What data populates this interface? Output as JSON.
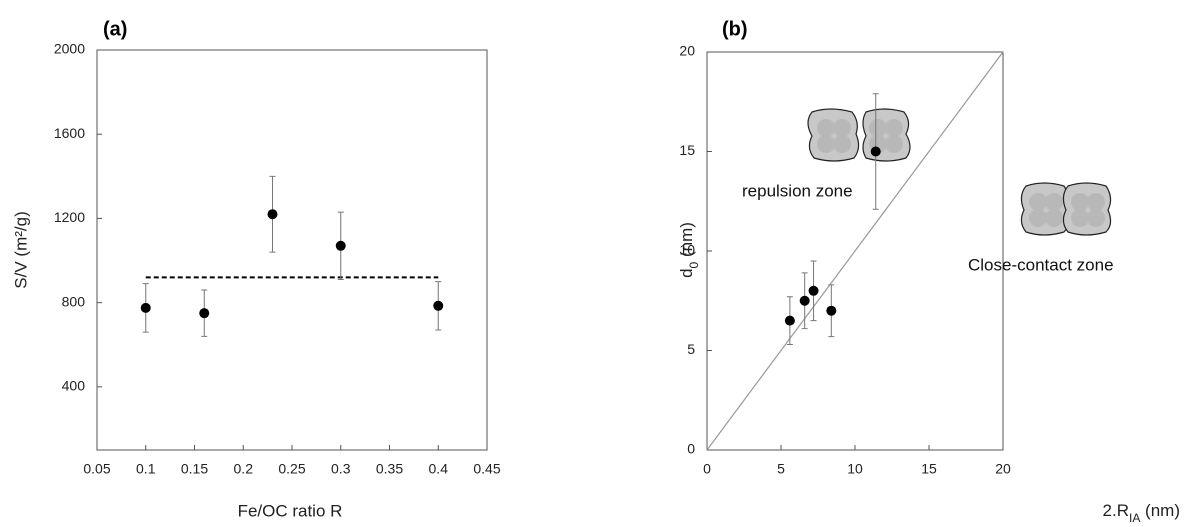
{
  "chart_data": [
    {
      "type": "scatter",
      "panel_label": "(a)",
      "x_label": "Fe/OC ratio R",
      "y_label": "S/V (m²/g)",
      "x": [
        0.1,
        0.16,
        0.23,
        0.3,
        0.4
      ],
      "values": [
        775,
        750,
        1220,
        1070,
        785
      ],
      "errors": [
        115,
        110,
        180,
        160,
        115
      ],
      "color": "#000000",
      "xlim": [
        0.05,
        0.45
      ],
      "xticks": [
        0.05,
        0.1,
        0.15,
        0.2,
        0.25,
        0.3,
        0.35,
        0.4,
        0.45
      ],
      "ylim": [
        100,
        2000
      ],
      "yticks": [
        400,
        800,
        1200,
        1600,
        2000
      ],
      "reference_line": {
        "x": [
          0.1,
          0.4
        ],
        "y": [
          920,
          920
        ],
        "style": "dashed",
        "color": "#000000"
      }
    },
    {
      "type": "scatter",
      "panel_label": "(b)",
      "x_label": {
        "text": "2.R",
        "sub": "IA",
        "rest": " (nm)"
      },
      "y_label": {
        "text": "d",
        "sub": "0",
        "rest": " (nm)"
      },
      "x": [
        5.6,
        6.6,
        7.2,
        8.4,
        11.4
      ],
      "values": [
        6.5,
        7.5,
        8.0,
        7.0,
        15.0
      ],
      "errors": [
        1.2,
        1.4,
        1.5,
        1.3,
        2.9
      ],
      "color": "#000000",
      "xlim": [
        0,
        20
      ],
      "xticks": [
        0,
        5,
        10,
        15,
        20
      ],
      "ylim": [
        0,
        20
      ],
      "yticks": [
        0,
        5,
        10,
        15,
        20
      ],
      "reference_line": {
        "x": [
          0,
          20
        ],
        "y": [
          0,
          20
        ],
        "style": "solid",
        "color": "#999999"
      },
      "annotations": [
        "repulsion zone",
        "Close-contact zone"
      ]
    }
  ]
}
